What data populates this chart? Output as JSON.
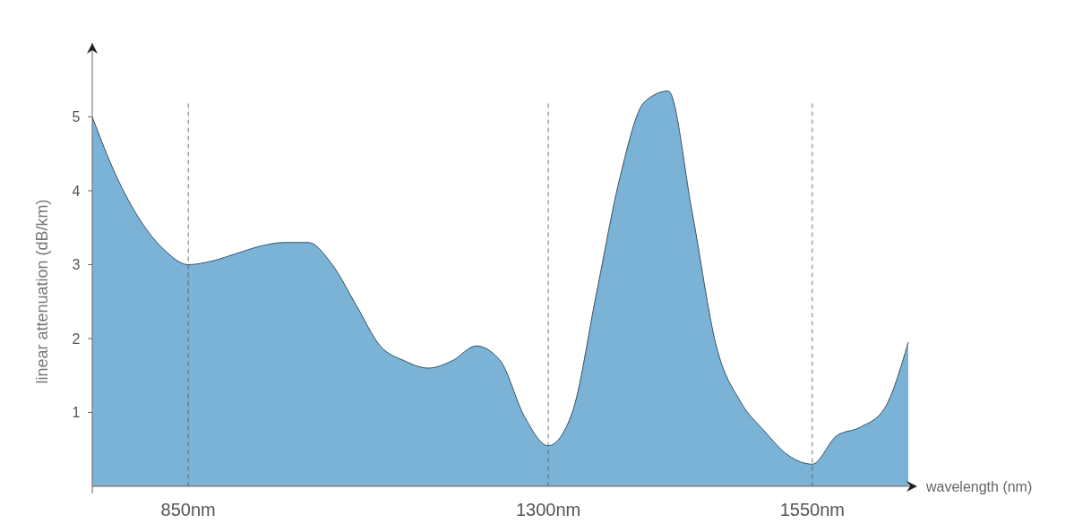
{
  "chart_data": {
    "type": "area",
    "xlabel": "wavelength (nm)",
    "ylabel": "linear attenuation (dB/km)",
    "categories": [
      null,
      null,
      null,
      null,
      "850nm",
      null,
      null,
      null,
      null,
      null,
      null,
      null,
      null,
      null,
      null,
      null,
      null,
      null,
      null,
      "1300nm",
      null,
      null,
      null,
      null,
      null,
      null,
      null,
      null,
      null,
      null,
      "1550nm",
      null,
      null,
      null,
      null
    ],
    "series": [
      {
        "color": "#7ab3d6",
        "values": [
          5.0,
          4.2,
          3.6,
          3.2,
          3.0,
          3.05,
          3.15,
          3.25,
          3.3,
          3.3,
          3.0,
          2.45,
          1.9,
          1.7,
          1.6,
          1.7,
          1.9,
          1.7,
          0.95,
          0.55,
          1.0,
          2.6,
          4.2,
          5.2,
          5.35,
          3.7,
          1.9,
          1.15,
          0.75,
          0.42,
          0.3,
          0.68,
          0.8,
          1.05,
          1.95
        ]
      }
    ],
    "ylim": [
      0,
      6
    ],
    "yticks": [
      1,
      2,
      3,
      4,
      5
    ],
    "grid": "x"
  }
}
